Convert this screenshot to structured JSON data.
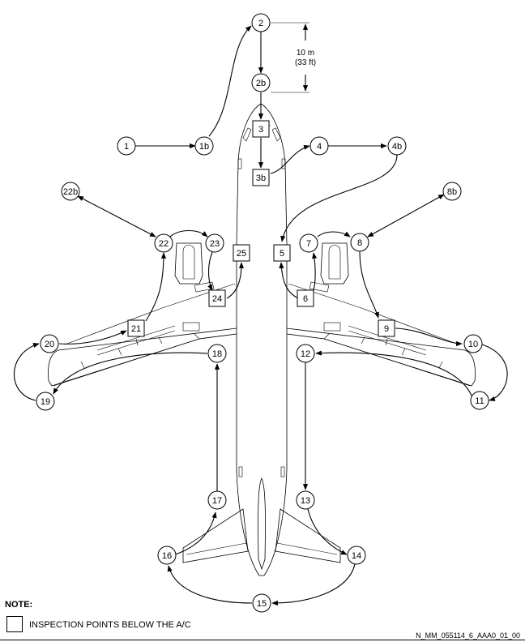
{
  "dimension": {
    "line1": "10 m",
    "line2": "(33 ft)"
  },
  "nodes": {
    "n1": "1",
    "n1b": "1b",
    "n2": "2",
    "n2b": "2b",
    "n3": "3",
    "n3b": "3b",
    "n4": "4",
    "n4b": "4b",
    "n5": "5",
    "n6": "6",
    "n7": "7",
    "n8": "8",
    "n8b": "8b",
    "n9": "9",
    "n10": "10",
    "n11": "11",
    "n12": "12",
    "n13": "13",
    "n14": "14",
    "n15": "15",
    "n16": "16",
    "n17": "17",
    "n18": "18",
    "n19": "19",
    "n20": "20",
    "n21": "21",
    "n22": "22",
    "n22b": "22b",
    "n23": "23",
    "n24": "24",
    "n25": "25"
  },
  "note": {
    "title": "NOTE:",
    "legend": "INSPECTION POINTS BELOW THE A/C"
  },
  "reference": "N_MM_055114_6_AAA0_01_00",
  "colors": {
    "ink": "#000000",
    "background": "#ffffff"
  }
}
